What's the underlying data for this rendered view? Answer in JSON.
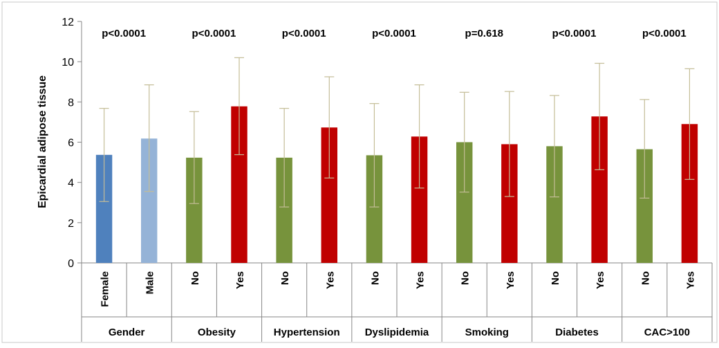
{
  "chart_data": {
    "type": "bar",
    "title": "",
    "xlabel": "",
    "ylabel": "Epicardial adipose tissue",
    "ylim": [
      0,
      12
    ],
    "yticks": [
      0,
      2,
      4,
      6,
      8,
      10,
      12
    ],
    "grid": false,
    "legend": "none",
    "groups": [
      {
        "name": "Gender",
        "pvalue": "p<0.0001",
        "bars": [
          {
            "label": "Female",
            "value": 5.37,
            "err_low": 3.05,
            "err_high": 7.68,
            "color": "#4F81BD"
          },
          {
            "label": "Male",
            "value": 6.18,
            "err_low": 3.55,
            "err_high": 8.85,
            "color": "#95B3D7"
          }
        ]
      },
      {
        "name": "Obesity",
        "pvalue": "p<0.0001",
        "bars": [
          {
            "label": "No",
            "value": 5.23,
            "err_low": 2.95,
            "err_high": 7.52,
            "color": "#77933C"
          },
          {
            "label": "Yes",
            "value": 7.78,
            "err_low": 5.38,
            "err_high": 10.2,
            "color": "#C00000"
          }
        ]
      },
      {
        "name": "Hypertension",
        "pvalue": "p<0.0001",
        "bars": [
          {
            "label": "No",
            "value": 5.23,
            "err_low": 2.78,
            "err_high": 7.68,
            "color": "#77933C"
          },
          {
            "label": "Yes",
            "value": 6.73,
            "err_low": 4.22,
            "err_high": 9.25,
            "color": "#C00000"
          }
        ]
      },
      {
        "name": "Dyslipidemia",
        "pvalue": "p<0.0001",
        "bars": [
          {
            "label": "No",
            "value": 5.35,
            "err_low": 2.78,
            "err_high": 7.92,
            "color": "#77933C"
          },
          {
            "label": "Yes",
            "value": 6.28,
            "err_low": 3.72,
            "err_high": 8.85,
            "color": "#C00000"
          }
        ]
      },
      {
        "name": "Smoking",
        "pvalue": "p=0.618",
        "bars": [
          {
            "label": "No",
            "value": 6.0,
            "err_low": 3.52,
            "err_high": 8.48,
            "color": "#77933C"
          },
          {
            "label": "Yes",
            "value": 5.9,
            "err_low": 3.3,
            "err_high": 8.52,
            "color": "#C00000"
          }
        ]
      },
      {
        "name": "Diabetes",
        "pvalue": "p<0.0001",
        "bars": [
          {
            "label": "No",
            "value": 5.8,
            "err_low": 3.28,
            "err_high": 8.32,
            "color": "#77933C"
          },
          {
            "label": "Yes",
            "value": 7.28,
            "err_low": 4.63,
            "err_high": 9.92,
            "color": "#C00000"
          }
        ]
      },
      {
        "name": "CAC>100",
        "pvalue": "p<0.0001",
        "bars": [
          {
            "label": "No",
            "value": 5.65,
            "err_low": 3.22,
            "err_high": 8.12,
            "color": "#77933C"
          },
          {
            "label": "Yes",
            "value": 6.9,
            "err_low": 4.15,
            "err_high": 9.65,
            "color": "#C00000"
          }
        ]
      }
    ]
  }
}
